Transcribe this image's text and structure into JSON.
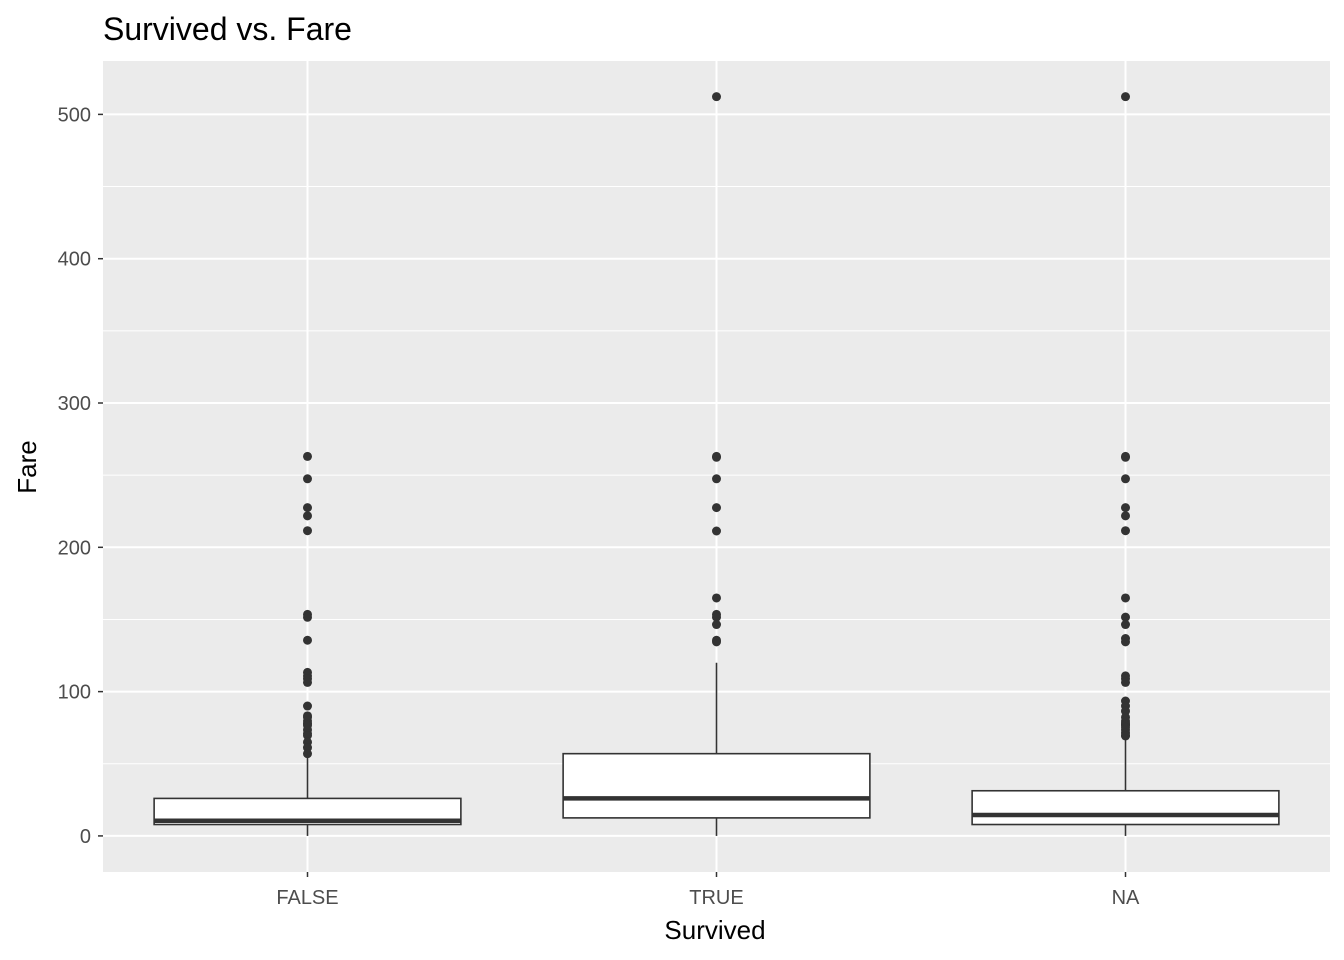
{
  "chart_data": {
    "type": "box",
    "title": "Survived vs. Fare",
    "xlabel": "Survived",
    "ylabel": "Fare",
    "ylim": [
      -25,
      537
    ],
    "yticks": [
      0,
      100,
      200,
      300,
      400,
      500
    ],
    "ytick_labels": [
      "0",
      "100",
      "200",
      "300",
      "400",
      "500"
    ],
    "grid": true,
    "legend": "none",
    "colors": {
      "panel": "#ebebeb",
      "grid": "#ffffff",
      "box_fill": "#ffffff",
      "box_stroke": "#333333",
      "outlier": "#333333",
      "tick_text": "#4d4d4d"
    },
    "categories": [
      "FALSE",
      "TRUE",
      "NA"
    ],
    "boxes": [
      {
        "category": "FALSE",
        "whisker_low": 0,
        "q1": 7.9,
        "median": 10.5,
        "q3": 26,
        "whisker_high": 56.5,
        "outliers": [
          263,
          247.5,
          227.5,
          221.8,
          211.5,
          153.5,
          151.5,
          135.6,
          113.3,
          110.9,
          108.9,
          106.4,
          90,
          83.2,
          82.2,
          79.7,
          77.9,
          76.7,
          73.5,
          71,
          69.6,
          65,
          61.2,
          57
        ]
      },
      {
        "category": "TRUE",
        "whisker_low": 0,
        "q1": 12.5,
        "median": 26,
        "q3": 57,
        "whisker_high": 120,
        "outliers": [
          512.3,
          263,
          262.4,
          247.5,
          227.5,
          211.3,
          164.9,
          153.5,
          151.6,
          146.5,
          135.6,
          134.5
        ]
      },
      {
        "category": "NA",
        "whisker_low": 0,
        "q1": 7.9,
        "median": 14.5,
        "q3": 31.3,
        "whisker_high": 66.6,
        "outliers": [
          512.3,
          263,
          262.4,
          247.5,
          227.5,
          221.8,
          211.5,
          164.9,
          151.6,
          146.5,
          136.8,
          134.5,
          110.9,
          108.9,
          106.4,
          93.5,
          90,
          86.5,
          82.2,
          79.7,
          78.3,
          77.3,
          76.7,
          75.3,
          73.5,
          71.3,
          69.6,
          69.3
        ]
      }
    ]
  }
}
